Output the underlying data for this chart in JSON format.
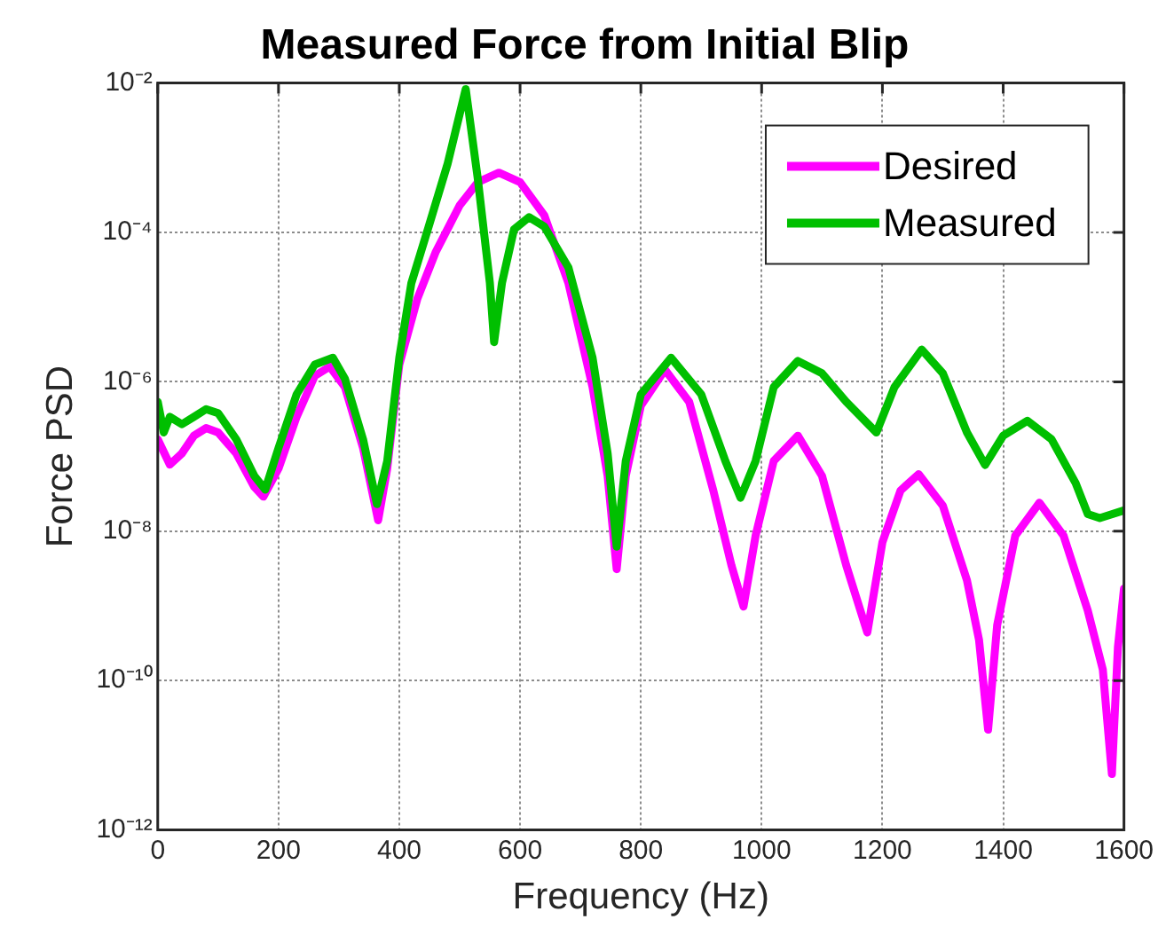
{
  "chart_data": {
    "type": "line",
    "title": "Measured Force from Initial Blip",
    "xlabel": "Frequency (Hz)",
    "ylabel": "Force PSD",
    "xlim": [
      0,
      1600
    ],
    "xticks": [
      0,
      200,
      400,
      600,
      800,
      1000,
      1200,
      1400,
      1600
    ],
    "ylim": [
      1e-12,
      0.01
    ],
    "yticks": [
      {
        "value": 1e-12,
        "label": "10⁻¹²"
      },
      {
        "value": 1e-10,
        "label": "10⁻¹⁰"
      },
      {
        "value": 1e-08,
        "label": "10⁻⁸"
      },
      {
        "value": 1e-06,
        "label": "10⁻⁶"
      },
      {
        "value": 0.0001,
        "label": "10⁻⁴"
      },
      {
        "value": 0.01,
        "label": "10⁻²"
      }
    ],
    "log": "y",
    "grid": true,
    "legend": "top right",
    "marker": "none",
    "line_style": "solid",
    "series": [
      {
        "name": "Desired",
        "color": "#ff00ff",
        "x": [
          0,
          20,
          40,
          60,
          80,
          100,
          130,
          160,
          175,
          200,
          230,
          260,
          285,
          310,
          340,
          365,
          380,
          400,
          430,
          460,
          500,
          530,
          565,
          600,
          640,
          680,
          720,
          745,
          760,
          775,
          800,
          840,
          880,
          920,
          950,
          970,
          990,
          1020,
          1060,
          1100,
          1140,
          1175,
          1200,
          1230,
          1260,
          1300,
          1340,
          1360,
          1375,
          1390,
          1420,
          1460,
          1500,
          1540,
          1565,
          1580,
          1590,
          1600
        ],
        "values": [
          1.7e-07,
          7.8e-08,
          1.1e-07,
          1.9e-07,
          2.4e-07,
          2.1e-07,
          1.1e-07,
          3.9e-08,
          2.9e-08,
          6.9e-08,
          3.4e-07,
          1.2e-06,
          1.6e-06,
          8.5e-07,
          1.3e-07,
          1.4e-08,
          6.9e-08,
          1.7e-06,
          1.3e-05,
          5.4e-05,
          0.00023,
          0.00047,
          0.00063,
          0.00047,
          0.00017,
          2.1e-05,
          8.5e-07,
          5.5e-08,
          3.1e-09,
          5.5e-08,
          4.8e-07,
          1.45e-06,
          5.4e-07,
          3.5e-08,
          3.5e-09,
          9.8e-10,
          8.7e-09,
          8.7e-08,
          1.9e-07,
          5.5e-08,
          3.5e-09,
          4.4e-10,
          7.1e-09,
          3.5e-08,
          5.8e-08,
          2.2e-08,
          2.2e-09,
          3.5e-10,
          2.2e-11,
          5.5e-10,
          8.7e-09,
          2.4e-08,
          8.7e-09,
          8.7e-10,
          1.4e-10,
          5.6e-12,
          2.8e-10,
          1.7e-09
        ]
      },
      {
        "name": "Measured",
        "color": "#00bf00",
        "x": [
          0,
          10,
          20,
          40,
          60,
          80,
          100,
          130,
          160,
          178,
          200,
          230,
          260,
          290,
          310,
          340,
          363,
          380,
          400,
          420,
          450,
          480,
          510,
          530,
          550,
          557,
          570,
          590,
          615,
          640,
          680,
          720,
          745,
          760,
          775,
          800,
          850,
          900,
          940,
          965,
          990,
          1020,
          1060,
          1100,
          1140,
          1190,
          1220,
          1265,
          1300,
          1340,
          1370,
          1400,
          1440,
          1480,
          1520,
          1540,
          1560,
          1600
        ],
        "values": [
          5.4e-07,
          2.1e-07,
          3.4e-07,
          2.7e-07,
          3.4e-07,
          4.3e-07,
          3.8e-07,
          1.7e-07,
          5.5e-08,
          3.6e-08,
          1.3e-07,
          6.8e-07,
          1.7e-06,
          2.1e-06,
          1.1e-06,
          1.7e-07,
          2.3e-08,
          8.7e-08,
          2.1e-06,
          2.1e-05,
          0.00013,
          0.00083,
          0.0083,
          0.00052,
          2.1e-05,
          3.4e-06,
          2.1e-05,
          0.00011,
          0.00016,
          0.00012,
          3.4e-05,
          2.1e-06,
          1.1e-07,
          6.2e-09,
          8.7e-08,
          6.8e-07,
          2.1e-06,
          6.8e-07,
          8.7e-08,
          2.8e-08,
          8.7e-08,
          8.5e-07,
          1.9e-06,
          1.3e-06,
          5.4e-07,
          2.1e-07,
          8.5e-07,
          2.7e-06,
          1.3e-06,
          2.1e-07,
          7.7e-08,
          1.9e-07,
          3e-07,
          1.7e-07,
          4.4e-08,
          1.7e-08,
          1.5e-08,
          1.9e-08
        ]
      }
    ]
  }
}
